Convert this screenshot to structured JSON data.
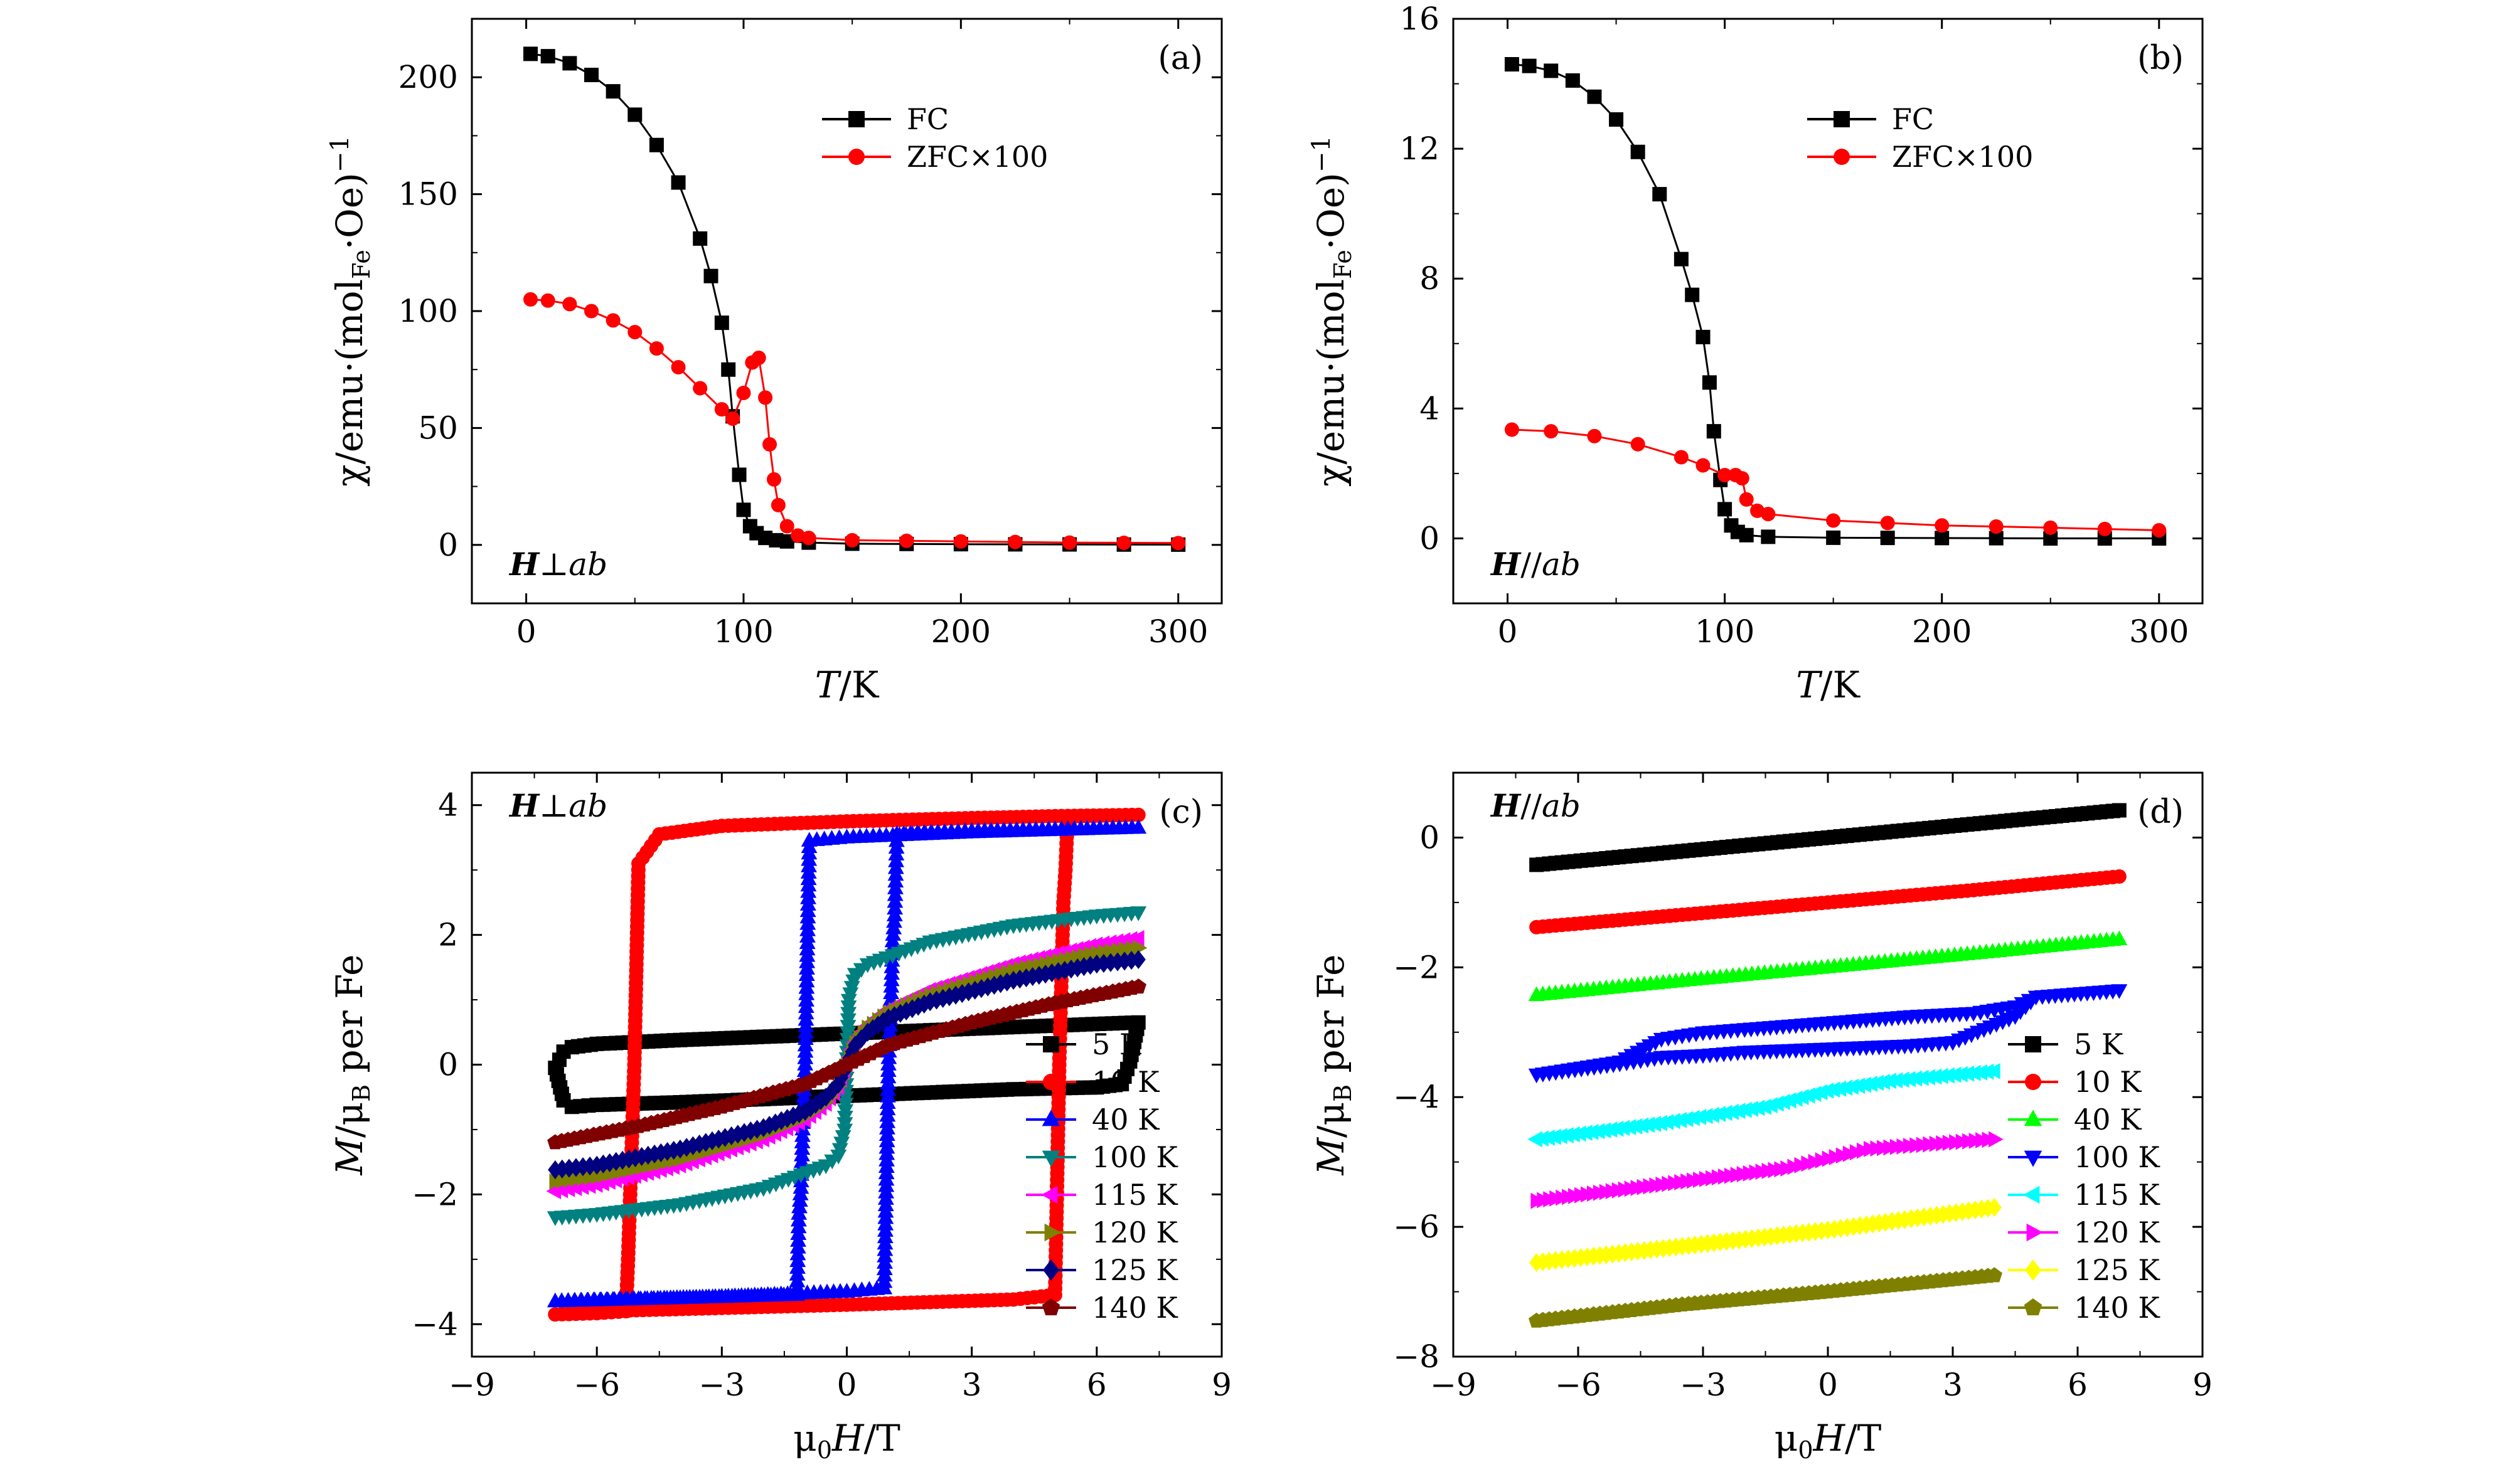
{
  "chart_data": [
    {
      "panel": "a",
      "type": "scatter",
      "panel_label": "(a)",
      "field_note": "H⊥ab",
      "xlabel": "T/K",
      "ylabel": "χ/emu·(mol_Fe·Oe)^−1",
      "ylabel_parts": [
        "χ/emu·(mol",
        "Fe",
        "·Oe)",
        "−1"
      ],
      "xlim": [
        -25,
        320
      ],
      "ylim": [
        -25,
        225
      ],
      "xticks": [
        0,
        100,
        200,
        300
      ],
      "yticks": [
        0,
        50,
        100,
        150,
        200
      ],
      "legend_position": "top-right",
      "series": [
        {
          "name": "FC",
          "color": "#000000",
          "marker": "square",
          "x": [
            2,
            10,
            20,
            30,
            40,
            50,
            60,
            70,
            80,
            85,
            90,
            93,
            95,
            98,
            100,
            103,
            106,
            110,
            115,
            120,
            130,
            150,
            200,
            250,
            300
          ],
          "y": [
            210,
            209,
            206,
            201,
            194,
            184,
            171,
            155,
            131,
            115,
            95,
            75,
            55,
            30,
            15,
            8,
            5,
            3,
            2,
            1.5,
            1,
            0.5,
            0.3,
            0.2,
            0.1
          ]
        },
        {
          "name": "ZFC×100",
          "color": "#ff0000",
          "marker": "circle",
          "x": [
            2,
            10,
            20,
            30,
            40,
            50,
            60,
            70,
            80,
            90,
            95,
            100,
            104,
            107,
            110,
            112,
            114,
            116,
            120,
            125,
            130,
            150,
            200,
            250,
            300
          ],
          "y": [
            105,
            104.5,
            103,
            100,
            96,
            91,
            84,
            76,
            67,
            58,
            54,
            65,
            78,
            80,
            63,
            43,
            28,
            17,
            8,
            4,
            3,
            2,
            1.5,
            1,
            0.8
          ]
        }
      ]
    },
    {
      "panel": "b",
      "type": "scatter",
      "panel_label": "(b)",
      "field_note": "H//ab",
      "xlabel": "T/K",
      "ylabel": "χ/emu·(mol_Fe·Oe)^−1",
      "ylabel_parts": [
        "χ/emu·(mol",
        "Fe",
        "·Oe)",
        "−1"
      ],
      "xlim": [
        -25,
        320
      ],
      "ylim": [
        -2,
        16
      ],
      "xticks": [
        0,
        100,
        200,
        300
      ],
      "yticks": [
        0,
        4,
        8,
        12,
        16
      ],
      "legend_position": "top-right",
      "series": [
        {
          "name": "FC",
          "color": "#000000",
          "marker": "square",
          "x": [
            2,
            10,
            20,
            30,
            40,
            50,
            60,
            70,
            80,
            85,
            90,
            93,
            95,
            98,
            100,
            103,
            106,
            110,
            120,
            150,
            200,
            250,
            300
          ],
          "y": [
            14.6,
            14.55,
            14.4,
            14.1,
            13.6,
            12.9,
            11.9,
            10.6,
            8.6,
            7.5,
            6.2,
            4.8,
            3.3,
            1.8,
            0.9,
            0.4,
            0.2,
            0.1,
            0.05,
            0.02,
            0.01,
            0,
            0
          ]
        },
        {
          "name": "ZFC×100",
          "color": "#ff0000",
          "marker": "circle",
          "x": [
            2,
            20,
            40,
            60,
            80,
            90,
            100,
            105,
            108,
            110,
            115,
            120,
            150,
            200,
            250,
            300
          ],
          "y": [
            3.35,
            3.3,
            3.15,
            2.9,
            2.5,
            2.25,
            1.95,
            1.95,
            1.85,
            1.2,
            0.85,
            0.75,
            0.55,
            0.4,
            0.33,
            0.25
          ]
        }
      ]
    },
    {
      "panel": "c",
      "type": "line",
      "panel_label": "(c)",
      "field_note": "H⊥ab",
      "xlabel": "μ0H/T",
      "ylabel": "M/μB per Fe",
      "xlim": [
        -9,
        9
      ],
      "ylim": [
        -4.5,
        4.5
      ],
      "xticks": [
        -9,
        -6,
        -3,
        0,
        3,
        6,
        9
      ],
      "xtick_labels": [
        "−9",
        "−6",
        "−3",
        "0",
        "3",
        "6",
        "9"
      ],
      "yticks": [
        -4,
        -2,
        0,
        2,
        4
      ],
      "ytick_labels": [
        "−4",
        "−2",
        "0",
        "2",
        "4"
      ],
      "legend_position": "bottom-right",
      "series": [
        {
          "name": "5 K",
          "color": "#000000",
          "marker": "square",
          "x": [
            -7,
            -6.8,
            -6.6,
            -6,
            -4,
            -2,
            0,
            2,
            4,
            7,
            6.8,
            6.6,
            6,
            4,
            2,
            0,
            -2,
            -4,
            -6,
            -6.6,
            -6.8,
            -7
          ],
          "y": [
            -0.05,
            0.2,
            0.27,
            0.32,
            0.38,
            0.43,
            0.48,
            0.53,
            0.58,
            0.65,
            0.05,
            -0.3,
            -0.35,
            -0.38,
            -0.43,
            -0.48,
            -0.53,
            -0.58,
            -0.62,
            -0.65,
            -0.55,
            -0.05
          ]
        },
        {
          "name": "10 K",
          "color": "#ff0000",
          "marker": "circle",
          "x": [
            -7,
            -6,
            -5.3,
            -5.25,
            -5.2,
            -5.1,
            -5,
            -4.5,
            -3,
            0,
            3,
            5,
            7,
            5.3,
            5.25,
            5.2,
            5.1,
            5,
            4,
            0,
            -3,
            -6,
            -7
          ],
          "y": [
            -3.85,
            -3.83,
            -3.8,
            -3,
            -2,
            0,
            3.1,
            3.55,
            3.68,
            3.75,
            3.8,
            3.83,
            3.85,
            3.82,
            3,
            2.5,
            0,
            -3.55,
            -3.62,
            -3.7,
            -3.75,
            -3.8,
            -3.85
          ]
        },
        {
          "name": "40 K",
          "color": "#0000ff",
          "marker": "triangle-up",
          "x": [
            -7,
            -4,
            -1.2,
            -1.15,
            -1.1,
            -1.05,
            -1,
            -0.9,
            0,
            3,
            7,
            3,
            1.2,
            1.15,
            1.1,
            1.05,
            1,
            0.9,
            0,
            -3,
            -7
          ],
          "y": [
            -3.65,
            -3.6,
            -3.55,
            -2.3,
            -1.9,
            -0.8,
            0,
            3.45,
            3.5,
            3.58,
            3.65,
            3.6,
            3.55,
            2.3,
            1.9,
            0.8,
            0,
            -3.45,
            -3.5,
            -3.58,
            -3.65
          ]
        },
        {
          "name": "100 K",
          "color": "#008080",
          "marker": "triangle-down",
          "x": [
            -7,
            -6,
            -4,
            -2,
            -0.5,
            -0.2,
            -0.05,
            0,
            0.05,
            0.2,
            0.5,
            2,
            4,
            6,
            7
          ],
          "y": [
            -2.35,
            -2.3,
            -2.15,
            -1.9,
            -1.55,
            -1.4,
            -1,
            0,
            1,
            1.4,
            1.55,
            1.9,
            2.15,
            2.3,
            2.35
          ]
        },
        {
          "name": "115 K",
          "color": "#ff00ff",
          "marker": "triangle-left",
          "x": [
            -7,
            -6,
            -4,
            -2,
            -1,
            -0.5,
            -0.2,
            0,
            0.2,
            0.5,
            1,
            2,
            4,
            6,
            7
          ],
          "y": [
            -1.95,
            -1.85,
            -1.55,
            -1.15,
            -0.85,
            -0.6,
            -0.35,
            0,
            0.35,
            0.6,
            0.85,
            1.15,
            1.55,
            1.85,
            1.95
          ]
        },
        {
          "name": "120 K",
          "color": "#808000",
          "marker": "triangle-right",
          "x": [
            -7,
            -6,
            -4,
            -2,
            -1,
            -0.5,
            -0.2,
            0,
            0.2,
            0.5,
            1,
            2,
            4,
            6,
            7
          ],
          "y": [
            -1.8,
            -1.72,
            -1.45,
            -1.07,
            -0.8,
            -0.57,
            -0.33,
            0,
            0.33,
            0.57,
            0.8,
            1.07,
            1.45,
            1.72,
            1.8
          ]
        },
        {
          "name": "125 K",
          "color": "#000080",
          "marker": "diamond",
          "x": [
            -7,
            -6,
            -4,
            -2,
            -1,
            -0.5,
            -0.2,
            0,
            0.2,
            0.5,
            1,
            2,
            4,
            6,
            7
          ],
          "y": [
            -1.62,
            -1.55,
            -1.3,
            -0.97,
            -0.72,
            -0.5,
            -0.3,
            0,
            0.3,
            0.5,
            0.72,
            0.97,
            1.3,
            1.55,
            1.62
          ]
        },
        {
          "name": "140 K",
          "color": "#800000",
          "marker": "pentagon",
          "x": [
            -7,
            -5,
            -3,
            -1,
            0,
            1,
            3,
            5,
            7
          ],
          "y": [
            -1.2,
            -0.95,
            -0.65,
            -0.3,
            0,
            0.3,
            0.65,
            0.95,
            1.2
          ]
        }
      ]
    },
    {
      "panel": "d",
      "type": "line",
      "panel_label": "(d)",
      "field_note": "H//ab",
      "xlabel": "μ0H/T",
      "ylabel": "M/μB per Fe",
      "xlim": [
        -9,
        9
      ],
      "ylim": [
        -8,
        1
      ],
      "xticks": [
        -9,
        -6,
        -3,
        0,
        3,
        6,
        9
      ],
      "xtick_labels": [
        "−9",
        "−6",
        "−3",
        "0",
        "3",
        "6",
        "9"
      ],
      "yticks": [
        -8,
        -6,
        -4,
        -2,
        0
      ],
      "ytick_labels": [
        "−8",
        "−6",
        "−4",
        "−2",
        "0"
      ],
      "legend_position": "bottom-right",
      "series": [
        {
          "name": "5 K",
          "color": "#000000",
          "marker": "square",
          "x": [
            -7,
            -3.5,
            0,
            3.5,
            7
          ],
          "y": [
            -0.42,
            -0.21,
            0,
            0.21,
            0.42
          ]
        },
        {
          "name": "10 K",
          "color": "#ff0000",
          "marker": "circle",
          "x": [
            -7,
            -3.5,
            0,
            3.5,
            7
          ],
          "y": [
            -1.38,
            -1.19,
            -1.0,
            -0.81,
            -0.6
          ]
        },
        {
          "name": "40 K",
          "color": "#00ff00",
          "marker": "triangle-up",
          "x": [
            -7,
            -3.5,
            0,
            3.5,
            7
          ],
          "y": [
            -2.43,
            -2.21,
            -2.0,
            -1.79,
            -1.57
          ]
        },
        {
          "name": "100 K",
          "color": "#0000ff",
          "marker": "triangle-down",
          "x": [
            -7,
            -5,
            -4,
            -3,
            -2,
            0,
            2,
            3.5,
            4.5,
            5,
            7,
            5,
            4.5,
            3,
            2,
            0,
            -2,
            -3,
            -4,
            -5,
            -7
          ],
          "y": [
            -3.65,
            -3.45,
            -3.1,
            -3.0,
            -2.95,
            -2.85,
            -2.75,
            -2.7,
            -2.6,
            -2.45,
            -2.35,
            -2.45,
            -2.75,
            -3.15,
            -3.2,
            -3.25,
            -3.3,
            -3.35,
            -3.38,
            -3.48,
            -3.65
          ]
        },
        {
          "name": "115 K",
          "color": "#00ffff",
          "marker": "triangle-left",
          "x": [
            -7,
            -4,
            -1.5,
            0,
            1.5,
            4
          ],
          "y": [
            -4.65,
            -4.4,
            -4.15,
            -3.9,
            -3.75,
            -3.6
          ]
        },
        {
          "name": "120 K",
          "color": "#ff00ff",
          "marker": "triangle-right",
          "x": [
            -7,
            -4,
            -1,
            0,
            1,
            4
          ],
          "y": [
            -5.6,
            -5.35,
            -5.1,
            -4.95,
            -4.8,
            -4.65
          ]
        },
        {
          "name": "125 K",
          "color": "#ffff00",
          "marker": "diamond",
          "x": [
            -7,
            -3.5,
            0,
            4
          ],
          "y": [
            -6.55,
            -6.3,
            -6.05,
            -5.7
          ]
        },
        {
          "name": "140 K",
          "color": "#808000",
          "marker": "pentagon",
          "x": [
            -7,
            -3.5,
            0,
            4
          ],
          "y": [
            -7.45,
            -7.2,
            -7.0,
            -6.75
          ]
        }
      ]
    }
  ]
}
